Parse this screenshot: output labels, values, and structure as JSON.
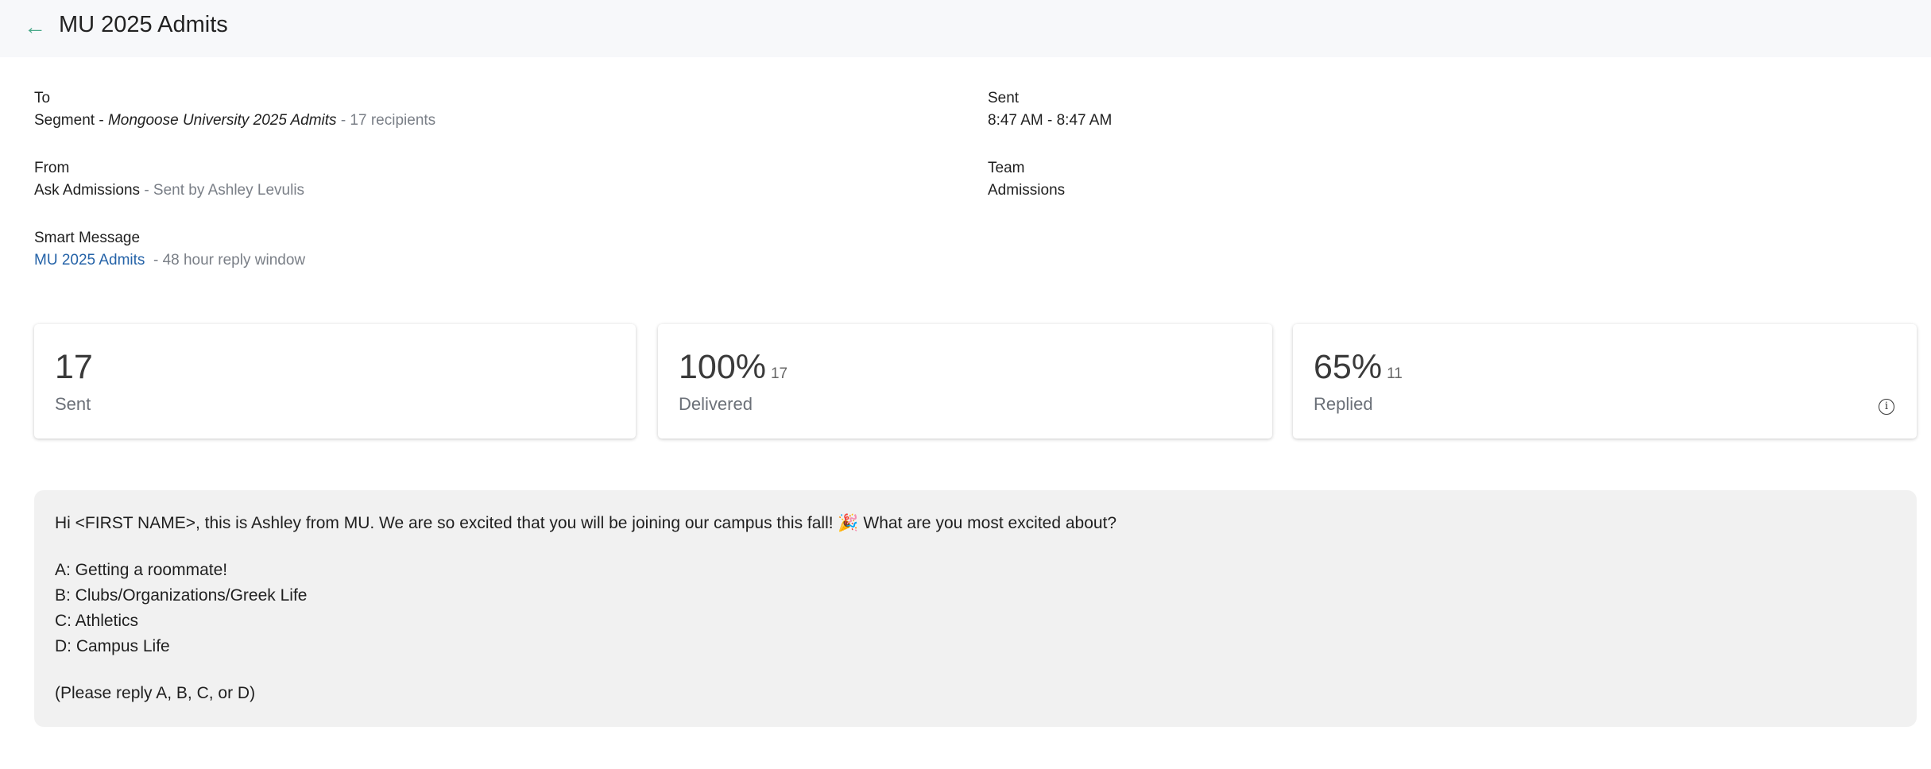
{
  "header": {
    "title": "MU 2025 Admits",
    "back_icon": "arrow-left-icon"
  },
  "details": {
    "to": {
      "label": "To",
      "prefix": "Segment - ",
      "segment": "Mongoose University 2025 Admits",
      "suffix": " - 17 recipients"
    },
    "from": {
      "label": "From",
      "value": "Ask Admissions",
      "suffix": " - Sent by Ashley Levulis"
    },
    "smart_message": {
      "label": "Smart Message",
      "link": "MU 2025 Admits",
      "suffix": "  - 48 hour reply window"
    },
    "sent": {
      "label": "Sent",
      "value": "8:47 AM - 8:47 AM"
    },
    "team": {
      "label": "Team",
      "value": "Admissions"
    }
  },
  "stats": [
    {
      "value": "17",
      "count": "",
      "label": "Sent"
    },
    {
      "value": "100%",
      "count": "17",
      "label": "Delivered"
    },
    {
      "value": "65%",
      "count": "11",
      "label": "Replied",
      "icon": "info-icon"
    }
  ],
  "message": {
    "intro": "Hi <FIRST NAME>, this is Ashley from MU. We are so excited that you will be joining our campus this fall! 🎉 What are you most excited about?",
    "options": [
      "A: Getting a roommate!",
      "B: Clubs/Organizations/Greek Life",
      "C: Athletics",
      "D: Campus Life"
    ],
    "footer": "(Please reply A, B, C, or D)"
  }
}
